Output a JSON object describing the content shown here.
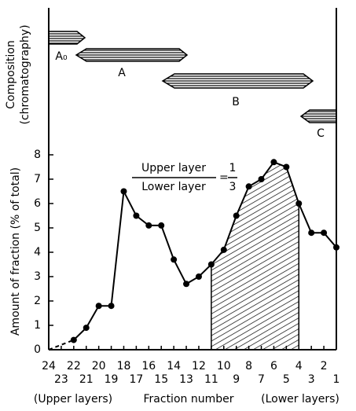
{
  "chart_data": {
    "type": "line",
    "ylabel": "Amount of fraction (% of total)",
    "composition_label": [
      "Composition",
      "(chromatography)"
    ],
    "components": [
      "A₀",
      "A",
      "B",
      "C"
    ],
    "xlabel": "Fraction number",
    "xlabel_left": "(Upper layers)",
    "xlabel_right": "(Lower layers)",
    "ratio": {
      "numerator": "Upper layer",
      "denominator": "Lower layer",
      "value_num": "1",
      "value_den": "3"
    },
    "xlim": [
      24,
      1
    ],
    "xticks": [
      24,
      23,
      22,
      21,
      20,
      19,
      18,
      17,
      16,
      15,
      14,
      13,
      12,
      11,
      10,
      9,
      8,
      7,
      6,
      5,
      4,
      3,
      2,
      1
    ],
    "ylim": [
      0,
      8
    ],
    "yticks": [
      0,
      1,
      2,
      3,
      4,
      5,
      6,
      7,
      8
    ],
    "series": [
      {
        "color": "#000000",
        "markers": true,
        "x": [
          22,
          21,
          20,
          19,
          18,
          17,
          16,
          15,
          14,
          13,
          12,
          11,
          10,
          9,
          8,
          7,
          6,
          5,
          4,
          3,
          2,
          1
        ],
        "values": [
          0.4,
          0.9,
          1.8,
          1.8,
          6.5,
          5.5,
          5.1,
          5.1,
          3.7,
          2.7,
          3.0,
          3.5,
          4.1,
          5.5,
          6.7,
          7.0,
          7.7,
          7.5,
          6.0,
          4.8,
          4.8,
          4.2
        ]
      },
      {
        "color": "#000000",
        "markers": false,
        "dashed": true,
        "x": [
          24,
          22
        ],
        "values": [
          0,
          0.4
        ]
      }
    ],
    "shade_x": [
      11,
      4
    ]
  }
}
